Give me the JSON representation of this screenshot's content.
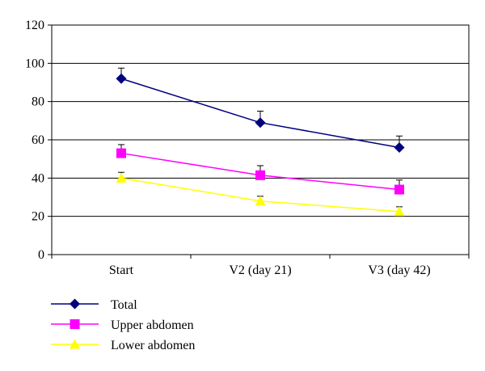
{
  "chart_data": {
    "type": "line",
    "categories": [
      "Start",
      "V2 (day 21)",
      "V3 (day 42)"
    ],
    "ylim": [
      0,
      120
    ],
    "yticks": [
      0,
      20,
      40,
      60,
      80,
      100,
      120
    ],
    "grid": true,
    "legend_position": "bottom-left",
    "series": [
      {
        "name": "Total",
        "color": "#000080",
        "marker": "diamond",
        "values": [
          92,
          69,
          56
        ],
        "errors": [
          5.5,
          6,
          6
        ]
      },
      {
        "name": "Upper abdomen",
        "color": "#FF00FF",
        "marker": "square",
        "values": [
          53,
          41.5,
          34
        ],
        "errors": [
          4.5,
          5,
          5
        ]
      },
      {
        "name": "Lower abdomen",
        "color": "#FFFF00",
        "marker": "triangle",
        "values": [
          40,
          28,
          22.5
        ],
        "errors": [
          3,
          2.5,
          2.5
        ]
      }
    ]
  }
}
